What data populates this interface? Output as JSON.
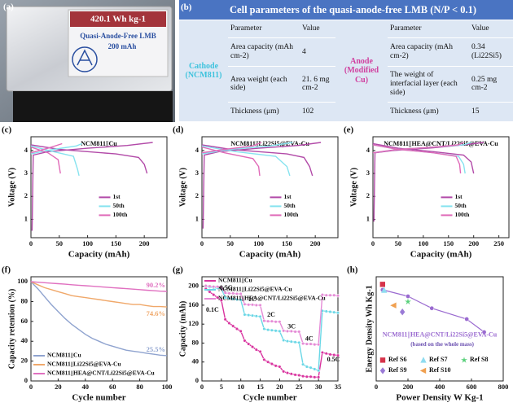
{
  "photo": {
    "panel": "(a)",
    "energy": "420.1 Wh kg-1",
    "name": "Quasi-Anode-Free LMB",
    "capacity": "200 mAh"
  },
  "table": {
    "panel": "(b)",
    "title": "Cell parameters of the quasi-anode-free LMB (N/P < 0.1)",
    "groups": [
      "Cathode (NCM811)",
      "Anode (Modified Cu)"
    ],
    "header": [
      "Parameter",
      "Value",
      "Parameter",
      "Value"
    ],
    "rows": [
      [
        "Area capacity (mAh cm-2)",
        "4",
        "Area capacity (mAh cm-2)",
        "0.34 (Li22Si5)"
      ],
      [
        "Area weight (each side)",
        "21. 6 mg cm-2",
        "The weight of interfacial layer (each side)",
        "0.25 mg cm-2"
      ],
      [
        "Thickness (μm)",
        "102",
        "Thickness (μm)",
        "15"
      ]
    ]
  },
  "chart_data": [
    {
      "type": "line",
      "panel": "(c)",
      "title": "NCM811||Cu",
      "xlabel": "Capacity (mAh)",
      "ylabel": "Voltage (V)",
      "xlim": [
        0,
        240
      ],
      "xticks": [
        0,
        50,
        100,
        150,
        200
      ],
      "ylim": [
        0.2,
        4.6
      ],
      "yticks": [
        1,
        2,
        3,
        4
      ],
      "legend": "center right",
      "series": [
        {
          "name": "1st",
          "color": "#b24aa8",
          "x": [
            2,
            4,
            30,
            100,
            170,
            215,
            null,
            0,
            50,
            100,
            150,
            190,
            200,
            205
          ],
          "values": [
            0.5,
            3.8,
            3.95,
            4.1,
            4.22,
            4.35,
            null,
            4.25,
            4.05,
            3.95,
            3.85,
            3.7,
            3.4,
            3.0
          ]
        },
        {
          "name": "50th",
          "color": "#86e3ef",
          "x": [
            0,
            40,
            80,
            90,
            null,
            0,
            40,
            75,
            82,
            85
          ],
          "values": [
            3.85,
            4.05,
            4.2,
            4.3,
            null,
            4.2,
            3.95,
            3.75,
            3.2,
            2.9
          ]
        },
        {
          "name": "100th",
          "color": "#e06ab8",
          "x": [
            0,
            30,
            55,
            null,
            0,
            30,
            48,
            52
          ],
          "values": [
            3.9,
            4.1,
            4.3,
            null,
            4.15,
            3.9,
            3.6,
            3.0
          ]
        }
      ]
    },
    {
      "type": "line",
      "panel": "(d)",
      "title": "NCM811||Li22Si5@EVA-Cu",
      "xlabel": "Capacity (mAh)",
      "ylabel": "Voltage (V)",
      "xlim": [
        0,
        240
      ],
      "xticks": [
        0,
        50,
        100,
        150,
        200
      ],
      "ylim": [
        0.2,
        4.6
      ],
      "yticks": [
        1,
        2,
        3,
        4
      ],
      "legend": "center right",
      "series": [
        {
          "name": "1st",
          "color": "#b24aa8",
          "x": [
            2,
            4,
            30,
            100,
            170,
            210,
            null,
            0,
            50,
            100,
            150,
            180,
            190,
            195
          ],
          "values": [
            0.6,
            3.8,
            3.95,
            4.1,
            4.22,
            4.35,
            null,
            4.25,
            4.05,
            3.95,
            3.85,
            3.7,
            3.3,
            2.9
          ]
        },
        {
          "name": "50th",
          "color": "#86e3ef",
          "x": [
            0,
            50,
            120,
            160,
            null,
            0,
            60,
            130,
            150,
            155
          ],
          "values": [
            3.85,
            4.05,
            4.2,
            4.35,
            null,
            4.2,
            3.95,
            3.75,
            3.3,
            2.9
          ]
        },
        {
          "name": "100th",
          "color": "#e06ab8",
          "x": [
            0,
            40,
            90,
            105,
            null,
            0,
            40,
            90,
            100,
            102
          ],
          "values": [
            3.9,
            4.05,
            4.2,
            4.35,
            null,
            4.15,
            3.9,
            3.65,
            3.3,
            2.9
          ]
        }
      ]
    },
    {
      "type": "line",
      "panel": "(e)",
      "title": "NCM811||HEA@CNT/Li22Si5@EVA-Cu",
      "xlabel": "Capacity (mAh)",
      "ylabel": "Voltage (V)",
      "xlim": [
        0,
        270
      ],
      "xticks": [
        0,
        50,
        100,
        150,
        200,
        250
      ],
      "ylim": [
        0.2,
        4.6
      ],
      "yticks": [
        1,
        2,
        3,
        4
      ],
      "legend": "center right",
      "series": [
        {
          "name": "1st",
          "color": "#b24aa8",
          "x": [
            2,
            4,
            40,
            120,
            180,
            220,
            null,
            0,
            50,
            120,
            180,
            195,
            200
          ],
          "values": [
            0.9,
            3.9,
            4.0,
            4.12,
            4.25,
            4.35,
            null,
            4.3,
            4.1,
            3.95,
            3.8,
            3.5,
            3.0
          ]
        },
        {
          "name": "50th",
          "color": "#86e3ef",
          "x": [
            0,
            50,
            120,
            180,
            195,
            null,
            0,
            50,
            120,
            170,
            180,
            183
          ],
          "values": [
            3.9,
            4.05,
            4.15,
            4.25,
            4.35,
            null,
            4.25,
            4.05,
            3.9,
            3.75,
            3.4,
            3.0
          ]
        },
        {
          "name": "100th",
          "color": "#e06ab8",
          "x": [
            0,
            50,
            120,
            170,
            180,
            null,
            0,
            50,
            120,
            165,
            172,
            174
          ],
          "values": [
            3.9,
            4.05,
            4.15,
            4.25,
            4.35,
            null,
            4.25,
            4.05,
            3.9,
            3.75,
            3.4,
            3.0
          ]
        }
      ]
    },
    {
      "type": "line",
      "panel": "(f)",
      "xlabel": "Cycle number",
      "ylabel": "Capacity retention (%)",
      "xlim": [
        0,
        100
      ],
      "xticks": [
        0,
        20,
        40,
        60,
        80,
        100
      ],
      "ylim": [
        0,
        105
      ],
      "yticks": [
        0,
        20,
        40,
        60,
        80,
        100
      ],
      "legend": "lower left",
      "x": [
        0,
        5,
        10,
        15,
        20,
        25,
        30,
        35,
        40,
        45,
        50,
        55,
        60,
        65,
        70,
        75,
        80,
        85,
        90,
        95,
        100
      ],
      "series": [
        {
          "name": "NCM811||Cu",
          "color": "#8fa3cf",
          "values": [
            100,
            93,
            85,
            77,
            70,
            63,
            57,
            52,
            47,
            43,
            40,
            37,
            35,
            33,
            31,
            30,
            29,
            28,
            27,
            26,
            25.5
          ],
          "value_labels": [
            null,
            null,
            null,
            null,
            null,
            null,
            null,
            null,
            null,
            null,
            null,
            null,
            null,
            null,
            null,
            null,
            null,
            null,
            null,
            null,
            "25.5%"
          ]
        },
        {
          "name": "NCM811||Li22Si5@EVA-Cu",
          "color": "#f0a86a",
          "values": [
            100,
            97,
            94,
            92,
            90,
            88,
            86,
            85,
            84,
            83,
            82,
            81,
            80,
            79,
            78,
            77,
            77,
            76,
            75,
            75,
            74.6
          ],
          "value_labels": [
            null,
            null,
            null,
            null,
            null,
            null,
            null,
            null,
            null,
            null,
            null,
            null,
            null,
            null,
            null,
            null,
            null,
            null,
            null,
            null,
            "74.6%"
          ]
        },
        {
          "name": "NCM811||HEA@CNT/Li22Si5@EVA-Cu",
          "color": "#e070c0",
          "values": [
            100,
            99.5,
            99,
            98.5,
            98,
            97.5,
            97,
            96.5,
            96,
            95.5,
            95,
            94.5,
            94,
            93.5,
            93,
            92.5,
            92,
            91.5,
            91,
            90.5,
            90.2
          ],
          "value_labels": [
            null,
            null,
            null,
            null,
            null,
            null,
            null,
            null,
            null,
            null,
            null,
            null,
            null,
            null,
            null,
            null,
            null,
            null,
            null,
            null,
            "90.2%"
          ]
        }
      ]
    },
    {
      "type": "line",
      "panel": "(g)",
      "xlabel": "Cycle number",
      "ylabel": "Capacity (mAh)",
      "markers": true,
      "xlim": [
        0,
        35
      ],
      "xticks": [
        0,
        5,
        10,
        15,
        20,
        25,
        30,
        35
      ],
      "ylim": [
        0,
        220
      ],
      "yticks": [
        0,
        40,
        80,
        120,
        160,
        200
      ],
      "legend": "upper left",
      "annotations": [
        "0.1C",
        "0.5C",
        "1C",
        "2C",
        "3C",
        "4C",
        "0.5C"
      ],
      "x": [
        1,
        2,
        3,
        4,
        5,
        6,
        7,
        8,
        9,
        10,
        11,
        12,
        13,
        14,
        15,
        16,
        17,
        18,
        19,
        20,
        21,
        22,
        23,
        24,
        25,
        26,
        27,
        28,
        29,
        30,
        31,
        32,
        33,
        34,
        35
      ],
      "series": [
        {
          "name": "NCM811||Cu",
          "color": "#d9349f",
          "values": [
            195,
            188,
            182,
            176,
            170,
            130,
            122,
            116,
            110,
            105,
            85,
            78,
            72,
            66,
            62,
            45,
            40,
            36,
            32,
            30,
            20,
            17,
            15,
            13,
            12,
            10,
            9,
            9,
            8,
            8,
            60,
            58,
            56,
            55,
            54
          ]
        },
        {
          "name": "NCM811||Li22Si5@EVA-Cu",
          "color": "#6ad7e6",
          "values": [
            200,
            198,
            197,
            196,
            195,
            176,
            174,
            173,
            172,
            171,
            140,
            139,
            138,
            137,
            136,
            110,
            108,
            107,
            106,
            105,
            86,
            84,
            83,
            82,
            81,
            35,
            30,
            28,
            25,
            22,
            148,
            147,
            146,
            145,
            144
          ]
        },
        {
          "name": "NCM811||HEA@CNT/Li22Si5@EVA-Cu",
          "color": "#e58ad6",
          "values": [
            201,
            200,
            199,
            199,
            198,
            186,
            185,
            185,
            184,
            184,
            162,
            161,
            161,
            160,
            160,
            127,
            126,
            126,
            125,
            125,
            106,
            105,
            105,
            104,
            104,
            79,
            78,
            78,
            77,
            77,
            182,
            181,
            181,
            181,
            180
          ]
        }
      ]
    },
    {
      "type": "scatter",
      "panel": "(h)",
      "xlabel": "Power Density W Kg-1",
      "ylabel": "Energy Density Wh Kg-1",
      "note": "(based on the whole mass)",
      "xlim": [
        0,
        800
      ],
      "xticks": [
        0,
        200,
        400,
        600,
        800
      ],
      "ylim": [
        0,
        480
      ],
      "legend": "lower left",
      "series": [
        {
          "name": "NCM811||HEA@CNT/Li22Si5@EVA-Cu",
          "color": "#9a6ad0",
          "marker": "circle",
          "line": true,
          "x": [
            40,
            200,
            350,
            570,
            680
          ],
          "values": [
            420,
            390,
            335,
            285,
            225
          ]
        },
        {
          "name": "Ref S6",
          "color": "#d6334a",
          "marker": "square",
          "x": [
            40
          ],
          "values": [
            445
          ]
        },
        {
          "name": "Ref S7",
          "color": "#8fdcf0",
          "marker": "triangle",
          "x": [
            50
          ],
          "values": [
            418
          ]
        },
        {
          "name": "Ref S8",
          "color": "#58d07a",
          "marker": "star",
          "x": [
            200
          ],
          "values": [
            365
          ]
        },
        {
          "name": "Ref S9",
          "color": "#9a7ad6",
          "marker": "diamond",
          "x": [
            165
          ],
          "values": [
            318
          ]
        },
        {
          "name": "Ref S10",
          "color": "#f0a050",
          "marker": "triangle-left",
          "x": [
            110
          ],
          "values": [
            348
          ]
        }
      ]
    }
  ]
}
